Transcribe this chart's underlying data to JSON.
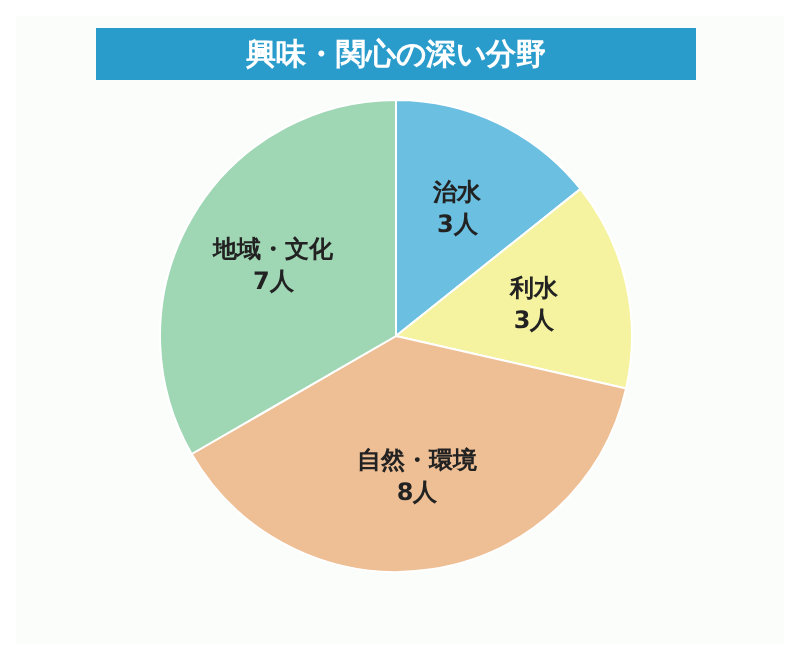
{
  "chart_data": {
    "type": "pie",
    "title": "興味・関心の深い分野",
    "categories": [
      "治水",
      "利水",
      "自然・環境",
      "地域・文化"
    ],
    "values": [
      3,
      3,
      8,
      7
    ],
    "value_labels": [
      "3人",
      "3人",
      "8人",
      "7人"
    ],
    "colors": [
      "#6bbfe0",
      "#f5f3a0",
      "#eebf95",
      "#9fd6b4"
    ]
  }
}
